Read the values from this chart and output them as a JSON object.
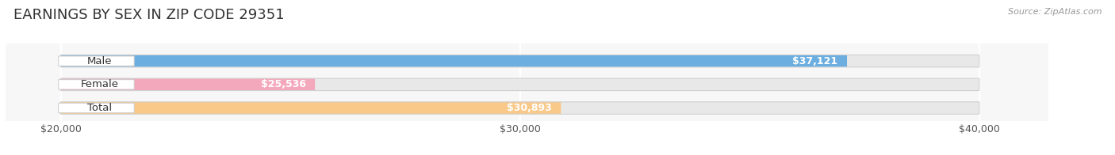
{
  "title": "EARNINGS BY SEX IN ZIP CODE 29351",
  "source": "Source: ZipAtlas.com",
  "categories": [
    "Male",
    "Female",
    "Total"
  ],
  "values": [
    37121,
    25536,
    30893
  ],
  "bar_colors": [
    "#6daee0",
    "#f4a8bc",
    "#f9c98a"
  ],
  "bar_bg_color": "#e8e8e8",
  "xmin": 20000,
  "xmax": 40000,
  "xticks": [
    20000,
    30000,
    40000
  ],
  "xtick_labels": [
    "$20,000",
    "$30,000",
    "$40,000"
  ],
  "value_labels": [
    "$37,121",
    "$25,536",
    "$30,893"
  ],
  "background_color": "#ffffff",
  "plot_bg_color": "#f7f7f7",
  "title_fontsize": 13,
  "label_fontsize": 9.5,
  "value_fontsize": 9,
  "tick_fontsize": 9,
  "bar_height": 0.52
}
